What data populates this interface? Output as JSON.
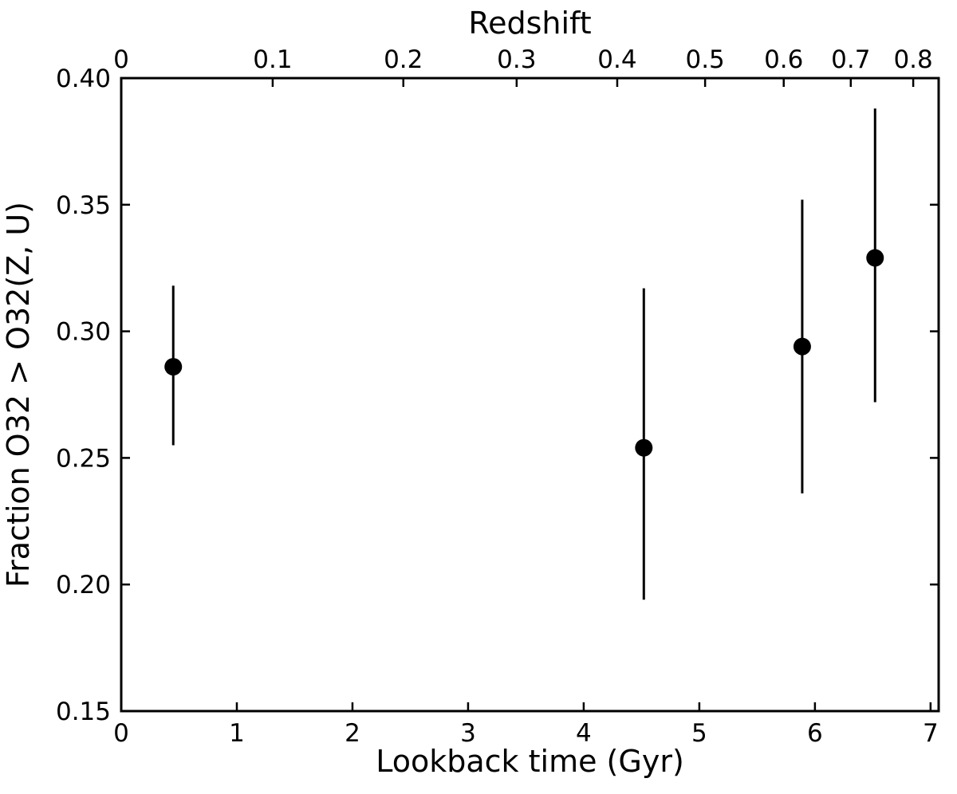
{
  "chart_data": {
    "type": "scatter",
    "title": "Redshift",
    "xlabel": "Lookback time (Gyr)",
    "ylabel": "Fraction O32 > O32(Z, U)",
    "xlim": [
      0,
      7.07
    ],
    "ylim": [
      0.15,
      0.4
    ],
    "grid": false,
    "legend": false,
    "x_ticks": [
      0,
      1,
      2,
      3,
      4,
      5,
      6,
      7
    ],
    "x_tick_labels": [
      "0",
      "1",
      "2",
      "3",
      "4",
      "5",
      "6",
      "7"
    ],
    "y_ticks": [
      0.15,
      0.2,
      0.25,
      0.3,
      0.35,
      0.4
    ],
    "y_tick_labels": [
      "0.15",
      "0.20",
      "0.25",
      "0.30",
      "0.35",
      "0.40"
    ],
    "top_axis": {
      "label": "Redshift",
      "tick_labels": [
        "0",
        "0.1",
        "0.2",
        "0.3",
        "0.4",
        "0.5",
        "0.6",
        "0.7",
        "0.8"
      ],
      "tick_positions_gyr": [
        0,
        1.31,
        2.44,
        3.42,
        4.29,
        5.05,
        5.73,
        6.31,
        6.85
      ]
    },
    "series": [
      {
        "name": "fraction-O32-greater-than-O32ZU",
        "marker": "circle",
        "color": "#000000",
        "points": [
          {
            "x_gyr": 0.45,
            "y": 0.286,
            "y_lo": 0.255,
            "y_hi": 0.318
          },
          {
            "x_gyr": 4.52,
            "y": 0.254,
            "y_lo": 0.194,
            "y_hi": 0.317
          },
          {
            "x_gyr": 5.89,
            "y": 0.294,
            "y_lo": 0.236,
            "y_hi": 0.352
          },
          {
            "x_gyr": 6.52,
            "y": 0.329,
            "y_lo": 0.272,
            "y_hi": 0.388
          }
        ]
      }
    ],
    "colors": {
      "foreground": "#000000",
      "background": "#ffffff"
    }
  }
}
